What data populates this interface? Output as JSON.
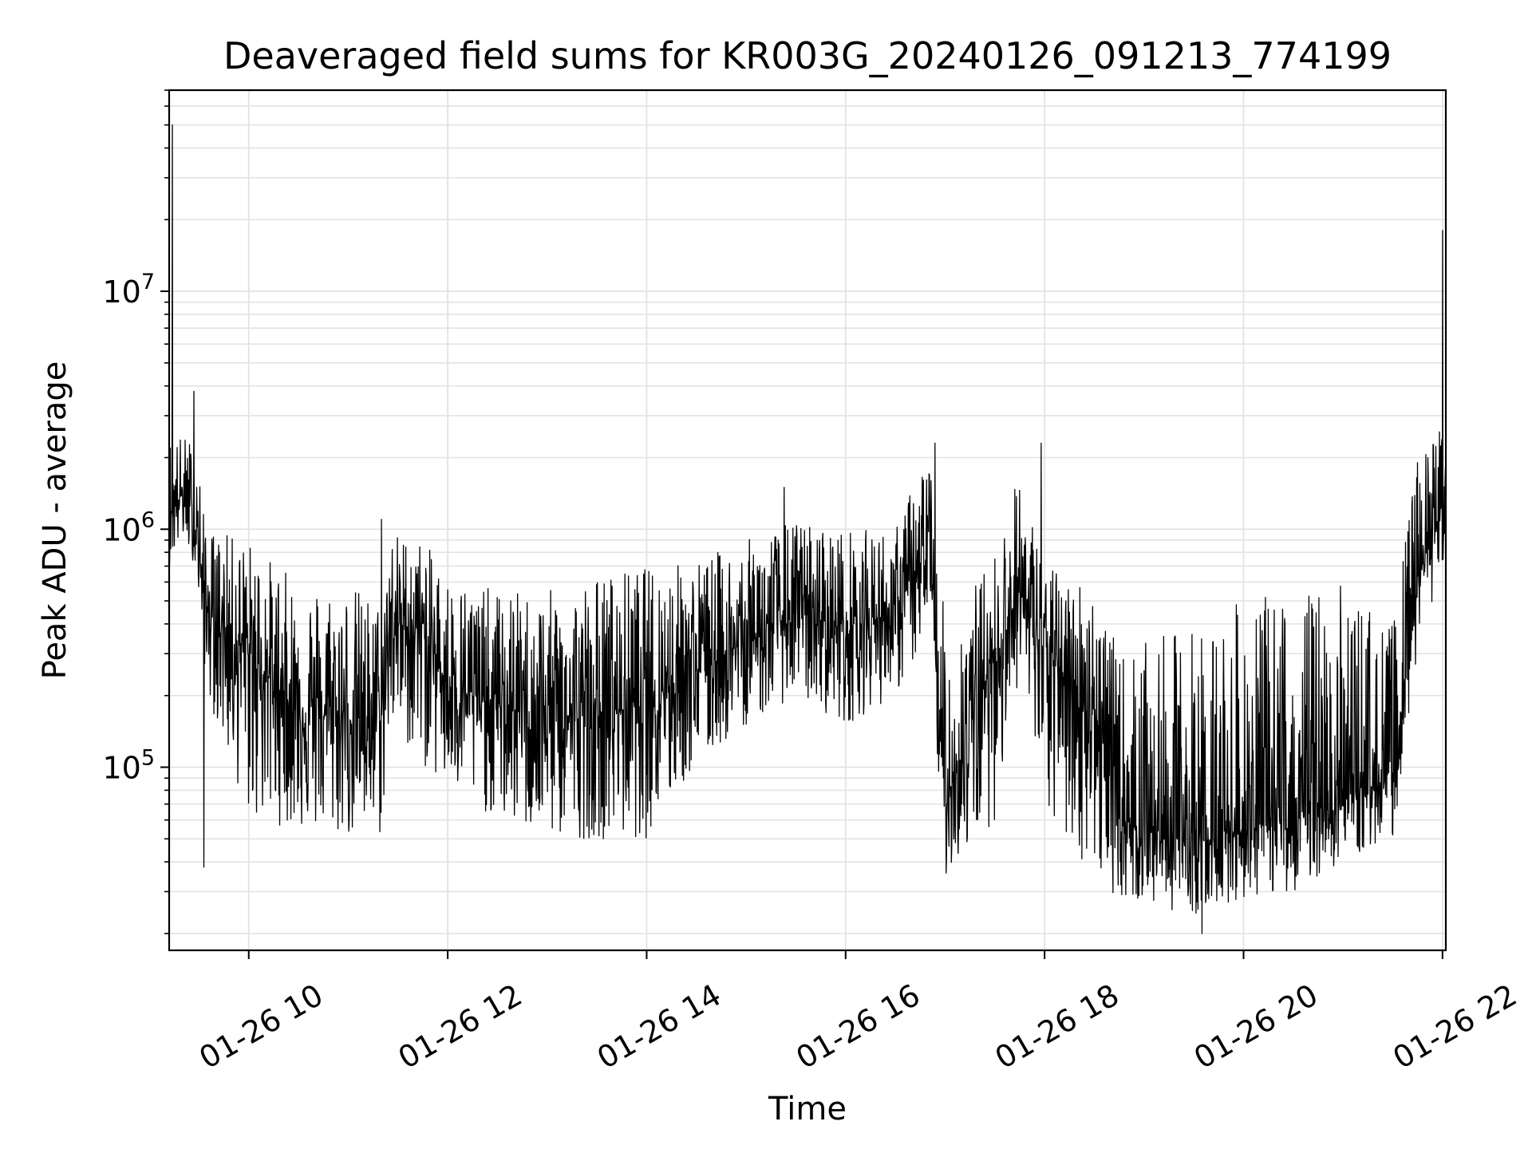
{
  "chart_data": {
    "type": "line",
    "title": "Deaveraged field sums for KR003G_20240126_091213_774199",
    "xlabel": "Time",
    "ylabel": "Peak ADU - average",
    "yscale": "log",
    "grid": "on",
    "legend": "none",
    "line_color": "#000000",
    "grid_color": "#e3e3e3",
    "xlim": [
      "2024-01-26 09:12",
      "2024-01-26 22:02"
    ],
    "ylim": [
      17000,
      70000000
    ],
    "x_ticks": [
      {
        "value": "2024-01-26 10:00",
        "label": "01-26 10"
      },
      {
        "value": "2024-01-26 12:00",
        "label": "01-26 12"
      },
      {
        "value": "2024-01-26 14:00",
        "label": "01-26 14"
      },
      {
        "value": "2024-01-26 16:00",
        "label": "01-26 16"
      },
      {
        "value": "2024-01-26 18:00",
        "label": "01-26 18"
      },
      {
        "value": "2024-01-26 20:00",
        "label": "01-26 20"
      },
      {
        "value": "2024-01-26 22:00",
        "label": "01-26 22"
      }
    ],
    "y_ticks": [
      {
        "value": 100000,
        "base": "10",
        "exp": "5"
      },
      {
        "value": 1000000,
        "base": "10",
        "exp": "6"
      },
      {
        "value": 10000000,
        "base": "10",
        "exp": "7"
      }
    ],
    "series": [
      {
        "envelope": [
          {
            "t": "2024-01-26 09:12",
            "median": 1200000,
            "low": 700000,
            "high": 2500000
          },
          {
            "t": "2024-01-26 09:20",
            "median": 1400000,
            "low": 900000,
            "high": 2500000
          },
          {
            "t": "2024-01-26 09:28",
            "median": 1000000,
            "low": 700000,
            "high": 2400000
          },
          {
            "t": "2024-01-26 09:35",
            "median": 450000,
            "low": 200000,
            "high": 1000000
          },
          {
            "t": "2024-01-26 10:00",
            "median": 300000,
            "low": 60000,
            "high": 900000
          },
          {
            "t": "2024-01-26 10:30",
            "median": 170000,
            "low": 55000,
            "high": 600000
          },
          {
            "t": "2024-01-26 11:00",
            "median": 160000,
            "low": 50000,
            "high": 600000
          },
          {
            "t": "2024-01-26 11:20",
            "median": 160000,
            "low": 50000,
            "high": 500000
          },
          {
            "t": "2024-01-26 11:25",
            "median": 400000,
            "low": 150000,
            "high": 1000000
          },
          {
            "t": "2024-01-26 11:45",
            "median": 380000,
            "low": 100000,
            "high": 900000
          },
          {
            "t": "2024-01-26 12:00",
            "median": 220000,
            "low": 80000,
            "high": 650000
          },
          {
            "t": "2024-01-26 12:30",
            "median": 180000,
            "low": 60000,
            "high": 550000
          },
          {
            "t": "2024-01-26 13:00",
            "median": 160000,
            "low": 50000,
            "high": 550000
          },
          {
            "t": "2024-01-26 13:30",
            "median": 160000,
            "low": 50000,
            "high": 650000
          },
          {
            "t": "2024-01-26 14:00",
            "median": 200000,
            "low": 50000,
            "high": 700000
          },
          {
            "t": "2024-01-26 14:30",
            "median": 260000,
            "low": 100000,
            "high": 750000
          },
          {
            "t": "2024-01-26 15:00",
            "median": 330000,
            "low": 150000,
            "high": 900000
          },
          {
            "t": "2024-01-26 15:30",
            "median": 450000,
            "low": 200000,
            "high": 1100000
          },
          {
            "t": "2024-01-26 16:00",
            "median": 380000,
            "low": 150000,
            "high": 1000000
          },
          {
            "t": "2024-01-26 16:30",
            "median": 450000,
            "low": 200000,
            "high": 1000000
          },
          {
            "t": "2024-01-26 16:50",
            "median": 800000,
            "low": 350000,
            "high": 2300000
          },
          {
            "t": "2024-01-26 17:00",
            "median": 70000,
            "low": 35000,
            "high": 400000
          },
          {
            "t": "2024-01-26 17:30",
            "median": 300000,
            "low": 60000,
            "high": 800000
          },
          {
            "t": "2024-01-26 17:45",
            "median": 550000,
            "low": 250000,
            "high": 1800000
          },
          {
            "t": "2024-01-26 18:00",
            "median": 300000,
            "low": 60000,
            "high": 700000
          },
          {
            "t": "2024-01-26 18:30",
            "median": 180000,
            "low": 35000,
            "high": 600000
          },
          {
            "t": "2024-01-26 18:45",
            "median": 60000,
            "low": 28000,
            "high": 300000
          },
          {
            "t": "2024-01-26 19:30",
            "median": 48000,
            "low": 24000,
            "high": 400000
          },
          {
            "t": "2024-01-26 20:00",
            "median": 55000,
            "low": 28000,
            "high": 500000
          },
          {
            "t": "2024-01-26 20:30",
            "median": 60000,
            "low": 30000,
            "high": 550000
          },
          {
            "t": "2024-01-26 21:00",
            "median": 75000,
            "low": 40000,
            "high": 600000
          },
          {
            "t": "2024-01-26 21:30",
            "median": 90000,
            "low": 50000,
            "high": 400000
          },
          {
            "t": "2024-01-26 21:45",
            "median": 600000,
            "low": 300000,
            "high": 2000000
          },
          {
            "t": "2024-01-26 22:02",
            "median": 1400000,
            "low": 800000,
            "high": 3000000
          }
        ],
        "spikes": [
          {
            "t": "2024-01-26 09:14",
            "value": 50000000
          },
          {
            "t": "2024-01-26 09:27",
            "value": 3800000
          },
          {
            "t": "2024-01-26 09:33",
            "value": 38000
          },
          {
            "t": "2024-01-26 11:20",
            "value": 1100000
          },
          {
            "t": "2024-01-26 15:23",
            "value": 1500000
          },
          {
            "t": "2024-01-26 16:54",
            "value": 2300000
          },
          {
            "t": "2024-01-26 17:58",
            "value": 2300000
          },
          {
            "t": "2024-01-26 19:35",
            "value": 20000
          },
          {
            "t": "2024-01-26 22:00",
            "value": 18000000
          }
        ]
      }
    ]
  }
}
